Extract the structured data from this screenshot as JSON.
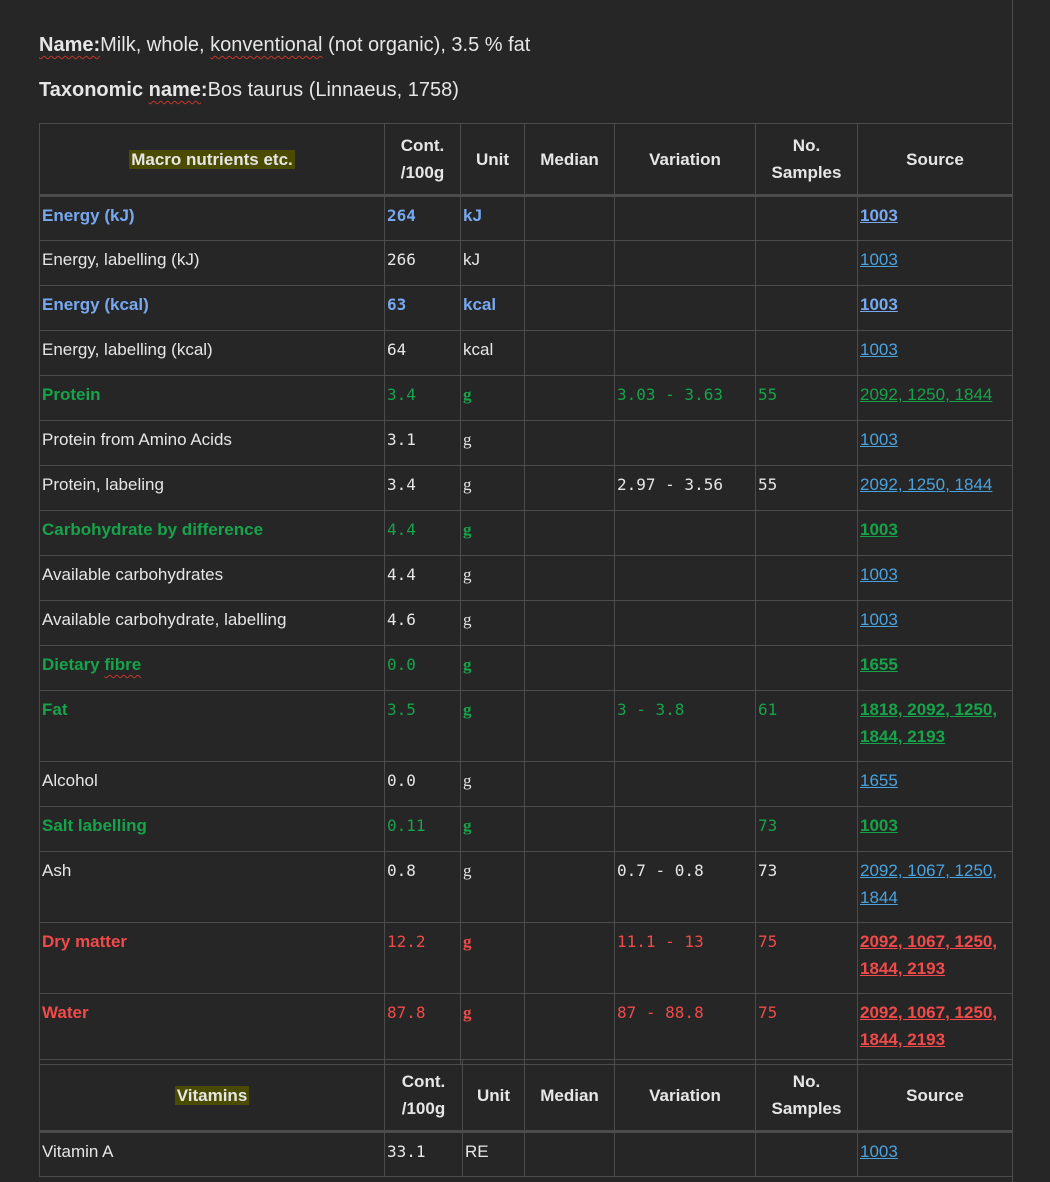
{
  "meta": {
    "name_label": "Name:",
    "name_value": "Milk, whole, konventional (not organic), 3.5 % fat",
    "tax_label": "Taxonomic name:",
    "tax_value": "Bos taurus (Linnaeus, 1758)"
  },
  "columns": {
    "cont_1": "Cont.",
    "cont_2": "/100g",
    "unit": "Unit",
    "median": "Median",
    "variation": "Variation",
    "samples_1": "No.",
    "samples_2": "Samples",
    "source": "Source"
  },
  "macro": {
    "title": "Macro nutrients etc.",
    "rows": [
      {
        "name": "Energy (kJ)",
        "cont": "264",
        "unit": "kJ",
        "median": "",
        "variation": "",
        "samples": "",
        "source": "1003",
        "style": "blue"
      },
      {
        "name": "Energy, labelling (kJ)",
        "cont": "266",
        "unit": "kJ",
        "median": "",
        "variation": "",
        "samples": "",
        "source": "1003",
        "style": "white"
      },
      {
        "name": "Energy (kcal)",
        "cont": "63",
        "unit": "kcal",
        "median": "",
        "variation": "",
        "samples": "",
        "source": "1003",
        "style": "blue"
      },
      {
        "name": "Energy, labelling (kcal)",
        "cont": "64",
        "unit": "kcal",
        "median": "",
        "variation": "",
        "samples": "",
        "source": "1003",
        "style": "white"
      },
      {
        "name": "Protein",
        "cont": "3.4",
        "unit": "g",
        "median": "",
        "variation": "3.03 - 3.63",
        "samples": "55",
        "source": "2092, 1250, 1844",
        "style": "green"
      },
      {
        "name": "Protein from Amino Acids",
        "cont": "3.1",
        "unit": "g",
        "median": "",
        "variation": "",
        "samples": "",
        "source": "1003",
        "style": "white"
      },
      {
        "name": "Protein, labeling",
        "cont": "3.4",
        "unit": "g",
        "median": "",
        "variation": "2.97 - 3.56",
        "samples": "55",
        "source": "2092, 1250, 1844",
        "style": "white"
      },
      {
        "name": "Carbohydrate by difference",
        "cont": "4.4",
        "unit": "g",
        "median": "",
        "variation": "",
        "samples": "",
        "source": "1003",
        "style": "green"
      },
      {
        "name": "Available carbohydrates",
        "cont": "4.4",
        "unit": "g",
        "median": "",
        "variation": "",
        "samples": "",
        "source": "1003",
        "style": "white"
      },
      {
        "name": "Available carbohydrate, labelling",
        "cont": "4.6",
        "unit": "g",
        "median": "",
        "variation": "",
        "samples": "",
        "source": "1003",
        "style": "white"
      },
      {
        "name": "Dietary fibre",
        "cont": "0.0",
        "unit": "g",
        "median": "",
        "variation": "",
        "samples": "",
        "source": "1655",
        "style": "green"
      },
      {
        "name": "Fat",
        "cont": "3.5",
        "unit": "g",
        "median": "",
        "variation": "3 - 3.8",
        "samples": "61",
        "source": "1818, 2092, 1250, 1844, 2193",
        "style": "green"
      },
      {
        "name": "Alcohol",
        "cont": "0.0",
        "unit": "g",
        "median": "",
        "variation": "",
        "samples": "",
        "source": "1655",
        "style": "white"
      },
      {
        "name": "Salt labelling",
        "cont": "0.11",
        "unit": "g",
        "median": "",
        "variation": "",
        "samples": "73",
        "source": "1003",
        "style": "green"
      },
      {
        "name": "Ash",
        "cont": "0.8",
        "unit": "g",
        "median": "",
        "variation": "0.7 - 0.8",
        "samples": "73",
        "source": "2092, 1067, 1250, 1844",
        "style": "white"
      },
      {
        "name": "Dry matter",
        "cont": "12.2",
        "unit": "g",
        "median": "",
        "variation": "11.1 - 13",
        "samples": "75",
        "source": "2092, 1067, 1250, 1844, 2193",
        "style": "red"
      },
      {
        "name": "Water",
        "cont": "87.8",
        "unit": "g",
        "median": "",
        "variation": "87 - 88.8",
        "samples": "75",
        "source": "2092, 1067, 1250, 1844, 2193",
        "style": "red"
      }
    ]
  },
  "vitamins": {
    "title": "Vitamins",
    "rows": [
      {
        "name": "Vitamin A",
        "cont": "33.1",
        "unit": "RE",
        "median": "",
        "variation": "",
        "samples": "",
        "source": "1003",
        "style": "white"
      }
    ]
  }
}
